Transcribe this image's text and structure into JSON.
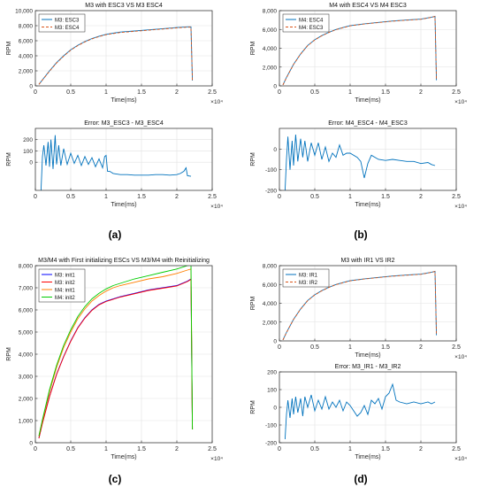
{
  "panel_labels": [
    "(a)",
    "(b)",
    "(c)",
    "(d)"
  ],
  "chart_data": [
    {
      "id": "a-top",
      "type": "line",
      "title": "M3 with ESC3 VS M3 ESC4",
      "xlabel": "Time(ms)",
      "ylabel": "RPM",
      "xlim": [
        0,
        25000
      ],
      "ylim": [
        0,
        10000
      ],
      "xticks": [
        0,
        5000,
        10000,
        15000,
        20000,
        25000
      ],
      "xtick_labels": [
        "0",
        "0.5",
        "1",
        "1.5",
        "2",
        "2.5"
      ],
      "x_exponent": "×10⁴",
      "yticks": [
        0,
        2000,
        4000,
        6000,
        8000,
        10000
      ],
      "ytick_labels": [
        "0",
        "2,000",
        "4,000",
        "6,000",
        "8,000",
        "10,000"
      ],
      "grid": true,
      "legend": "top-left",
      "series": [
        {
          "name": "M3: ESC3",
          "color": "#0072BD",
          "dash": "solid",
          "x": [
            500,
            1000,
            2000,
            3000,
            4000,
            5000,
            6000,
            7000,
            8000,
            9000,
            10000,
            11000,
            12000,
            14000,
            16000,
            18000,
            20000,
            21500,
            22000,
            22200
          ],
          "y": [
            200,
            800,
            2000,
            3100,
            4000,
            4800,
            5400,
            5900,
            6300,
            6600,
            6850,
            7000,
            7150,
            7300,
            7450,
            7600,
            7750,
            7850,
            7850,
            700
          ]
        },
        {
          "name": "M3: ESC4",
          "color": "#D95319",
          "dash": "dash",
          "x": [
            500,
            1000,
            2000,
            3000,
            4000,
            5000,
            6000,
            7000,
            8000,
            9000,
            10000,
            11000,
            12000,
            14000,
            16000,
            18000,
            20000,
            21500,
            22000,
            22200
          ],
          "y": [
            200,
            780,
            1950,
            3050,
            3950,
            4750,
            5350,
            5850,
            6250,
            6550,
            6800,
            6950,
            7100,
            7250,
            7400,
            7550,
            7700,
            7800,
            7800,
            700
          ]
        }
      ]
    },
    {
      "id": "a-bottom",
      "type": "line",
      "title": "Error: M3_ESC3 - M3_ESC4",
      "xlabel": "Time(ms)",
      "ylabel": "RPM",
      "xlim": [
        0,
        25000
      ],
      "ylim": [
        -250,
        300
      ],
      "xticks": [
        0,
        5000,
        10000,
        15000,
        20000,
        25000
      ],
      "xtick_labels": [
        "0",
        "0.5",
        "1",
        "1.5",
        "2",
        "2.5"
      ],
      "x_exponent": "×10⁴",
      "yticks": [
        0,
        100,
        200
      ],
      "ytick_labels": [
        "0",
        "100",
        "200"
      ],
      "grid": true,
      "legend": "none",
      "series": [
        {
          "name": "",
          "color": "#0072BD",
          "dash": "solid",
          "x": [
            800,
            1000,
            1200,
            1500,
            1800,
            2000,
            2200,
            2500,
            2800,
            3000,
            3300,
            3600,
            4000,
            4500,
            5000,
            5500,
            6000,
            6500,
            7000,
            7500,
            8000,
            8500,
            9000,
            9500,
            9800,
            10000,
            10200,
            10500,
            11000,
            12000,
            13000,
            14000,
            15000,
            16000,
            17000,
            18000,
            19000,
            20000,
            20500,
            21000,
            21300,
            21500,
            22000
          ],
          "y": [
            -250,
            50,
            150,
            -30,
            180,
            -40,
            200,
            -60,
            240,
            -20,
            150,
            -30,
            120,
            -20,
            80,
            -10,
            60,
            -30,
            50,
            -20,
            40,
            -40,
            30,
            -50,
            50,
            60,
            -80,
            -80,
            -100,
            -110,
            -110,
            -115,
            -115,
            -115,
            -110,
            -110,
            -115,
            -110,
            -100,
            -80,
            -50,
            -120,
            -125
          ]
        }
      ]
    },
    {
      "id": "b-top",
      "type": "line",
      "title": "M4 with ESC4 VS M4 ESC3",
      "xlabel": "Time(ms)",
      "ylabel": "RPM",
      "xlim": [
        0,
        25000
      ],
      "ylim": [
        0,
        8000
      ],
      "xticks": [
        0,
        5000,
        10000,
        15000,
        20000,
        25000
      ],
      "xtick_labels": [
        "0",
        "0.5",
        "1",
        "1.5",
        "2",
        "2.5"
      ],
      "x_exponent": "×10⁴",
      "yticks": [
        0,
        2000,
        4000,
        6000,
        8000
      ],
      "ytick_labels": [
        "0",
        "2,000",
        "4,000",
        "6,000",
        "8,000"
      ],
      "grid": true,
      "legend": "top-left",
      "series": [
        {
          "name": "M4: ESC4",
          "color": "#0072BD",
          "dash": "solid",
          "x": [
            500,
            1000,
            2000,
            3000,
            4000,
            5000,
            6000,
            7000,
            8000,
            9000,
            10000,
            11000,
            12000,
            14000,
            16000,
            18000,
            20000,
            21500,
            22000,
            22200
          ],
          "y": [
            100,
            900,
            2300,
            3400,
            4300,
            4900,
            5350,
            5700,
            6000,
            6200,
            6400,
            6500,
            6600,
            6750,
            6900,
            7000,
            7100,
            7300,
            7400,
            600
          ]
        },
        {
          "name": "M4: ESC3",
          "color": "#D95319",
          "dash": "dash",
          "x": [
            500,
            1000,
            2000,
            3000,
            4000,
            5000,
            6000,
            7000,
            8000,
            9000,
            10000,
            11000,
            12000,
            14000,
            16000,
            18000,
            20000,
            21500,
            22000,
            22200
          ],
          "y": [
            100,
            880,
            2280,
            3380,
            4280,
            4880,
            5330,
            5680,
            5980,
            6180,
            6380,
            6480,
            6580,
            6730,
            6880,
            6980,
            7080,
            7280,
            7380,
            600
          ]
        }
      ]
    },
    {
      "id": "b-bottom",
      "type": "line",
      "title": "Error: M4_ESC4 - M4_ESC3",
      "xlabel": "Time(ms)",
      "ylabel": "RPM",
      "xlim": [
        0,
        25000
      ],
      "ylim": [
        -200,
        100
      ],
      "xticks": [
        0,
        5000,
        10000,
        15000,
        20000,
        25000
      ],
      "xtick_labels": [
        "0",
        "0.5",
        "1",
        "1.5",
        "2",
        "2.5"
      ],
      "x_exponent": "×10⁴",
      "yticks": [
        -200,
        -100,
        0
      ],
      "ytick_labels": [
        "-200",
        "-100",
        "0"
      ],
      "grid": true,
      "legend": "none",
      "series": [
        {
          "name": "",
          "color": "#0072BD",
          "dash": "solid",
          "x": [
            800,
            1000,
            1200,
            1500,
            1800,
            2000,
            2300,
            2600,
            3000,
            3300,
            3600,
            4000,
            4500,
            5000,
            5500,
            6000,
            6500,
            7000,
            7500,
            8000,
            8500,
            9000,
            9500,
            10000,
            11000,
            11500,
            12000,
            12500,
            13000,
            14000,
            15000,
            16000,
            17000,
            18000,
            19000,
            20000,
            21000,
            21500,
            22000
          ],
          "y": [
            -200,
            -50,
            60,
            -100,
            40,
            -80,
            70,
            -60,
            50,
            -40,
            40,
            -60,
            30,
            -30,
            30,
            -50,
            10,
            -60,
            -20,
            -40,
            20,
            -30,
            -20,
            -20,
            -40,
            -60,
            -140,
            -70,
            -30,
            -50,
            -55,
            -50,
            -55,
            -60,
            -60,
            -70,
            -65,
            -75,
            -80
          ]
        }
      ]
    },
    {
      "id": "c",
      "type": "line",
      "title": "M3/M4 with First initializing ESCs VS M3/M4 with Reinitializing",
      "xlabel": "Time(ms)",
      "ylabel": "RPM",
      "xlim": [
        0,
        25000
      ],
      "ylim": [
        0,
        8000
      ],
      "xticks": [
        0,
        5000,
        10000,
        15000,
        20000,
        25000
      ],
      "xtick_labels": [
        "0",
        "0.5",
        "1",
        "1.5",
        "2",
        "2.5"
      ],
      "x_exponent": "×10⁴",
      "yticks": [
        0,
        1000,
        2000,
        3000,
        4000,
        5000,
        6000,
        7000,
        8000
      ],
      "ytick_labels": [
        "0",
        "1,000",
        "2,000",
        "3,000",
        "4,000",
        "5,000",
        "6,000",
        "7,000",
        "8,000"
      ],
      "grid": true,
      "legend": "top-left",
      "series": [
        {
          "name": "M3: init1",
          "color": "#0000FF",
          "dash": "solid",
          "x": [
            500,
            1000,
            2000,
            3000,
            4000,
            5000,
            6000,
            7000,
            8000,
            9000,
            10000,
            11000,
            12000,
            14000,
            16000,
            18000,
            20000,
            21500,
            22000,
            22200
          ],
          "y": [
            200,
            900,
            2100,
            3100,
            3900,
            4600,
            5200,
            5650,
            6000,
            6250,
            6400,
            6500,
            6600,
            6750,
            6900,
            7000,
            7100,
            7300,
            7400,
            600
          ]
        },
        {
          "name": "M3: init2",
          "color": "#FF0000",
          "dash": "solid",
          "x": [
            500,
            1000,
            2000,
            3000,
            4000,
            5000,
            6000,
            7000,
            8000,
            9000,
            10000,
            11000,
            12000,
            14000,
            16000,
            18000,
            20000,
            21500,
            22000,
            22200
          ],
          "y": [
            200,
            880,
            2080,
            3080,
            3880,
            4580,
            5180,
            5630,
            5980,
            6230,
            6380,
            6480,
            6580,
            6730,
            6880,
            6980,
            7080,
            7280,
            7380,
            600
          ]
        },
        {
          "name": "M4: init1",
          "color": "#FF7F00",
          "dash": "solid",
          "x": [
            500,
            1000,
            2000,
            3000,
            4000,
            5000,
            6000,
            7000,
            8000,
            9000,
            10000,
            11000,
            12000,
            14000,
            16000,
            18000,
            20000,
            21500,
            22000,
            22200
          ],
          "y": [
            300,
            1000,
            2300,
            3400,
            4300,
            5000,
            5600,
            6050,
            6400,
            6650,
            6850,
            7000,
            7100,
            7250,
            7400,
            7500,
            7650,
            7800,
            7850,
            600
          ]
        },
        {
          "name": "M4: init2",
          "color": "#00CC00",
          "dash": "solid",
          "x": [
            500,
            1000,
            2000,
            3000,
            4000,
            5000,
            6000,
            7000,
            8000,
            9000,
            10000,
            11000,
            12000,
            14000,
            16000,
            18000,
            20000,
            21500,
            22000,
            22200
          ],
          "y": [
            300,
            1050,
            2400,
            3500,
            4400,
            5100,
            5700,
            6150,
            6500,
            6750,
            6950,
            7100,
            7200,
            7400,
            7550,
            7700,
            7850,
            8000,
            8050,
            600
          ]
        }
      ]
    },
    {
      "id": "d-top",
      "type": "line",
      "title": "M3 with IR1 VS IR2",
      "xlabel": "Time(ms)",
      "ylabel": "RPM",
      "xlim": [
        0,
        25000
      ],
      "ylim": [
        0,
        8000
      ],
      "xticks": [
        0,
        5000,
        10000,
        15000,
        20000,
        25000
      ],
      "xtick_labels": [
        "0",
        "0.5",
        "1",
        "1.5",
        "2",
        "2.5"
      ],
      "x_exponent": "×10⁴",
      "yticks": [
        0,
        2000,
        4000,
        6000,
        8000
      ],
      "ytick_labels": [
        "0",
        "2,000",
        "4,000",
        "6,000",
        "8,000"
      ],
      "grid": true,
      "legend": "top-left",
      "series": [
        {
          "name": "M3: IR1",
          "color": "#0072BD",
          "dash": "solid",
          "x": [
            500,
            1000,
            2000,
            3000,
            4000,
            5000,
            6000,
            7000,
            8000,
            9000,
            10000,
            11000,
            12000,
            14000,
            16000,
            18000,
            20000,
            21500,
            22000,
            22200
          ],
          "y": [
            100,
            900,
            2300,
            3400,
            4300,
            4900,
            5350,
            5700,
            6000,
            6200,
            6400,
            6500,
            6600,
            6750,
            6900,
            7000,
            7100,
            7300,
            7400,
            600
          ]
        },
        {
          "name": "M3: IR2",
          "color": "#D95319",
          "dash": "dash",
          "x": [
            500,
            1000,
            2000,
            3000,
            4000,
            5000,
            6000,
            7000,
            8000,
            9000,
            10000,
            11000,
            12000,
            14000,
            16000,
            18000,
            20000,
            21500,
            22000,
            22200
          ],
          "y": [
            100,
            880,
            2280,
            3380,
            4280,
            4880,
            5330,
            5680,
            5980,
            6180,
            6380,
            6480,
            6580,
            6730,
            6880,
            6980,
            7080,
            7280,
            7380,
            600
          ]
        }
      ]
    },
    {
      "id": "d-bottom",
      "type": "line",
      "title": "Error: M3_IR1 - M3_IR2",
      "xlabel": "Time(ms)",
      "ylabel": "RPM",
      "xlim": [
        0,
        25000
      ],
      "ylim": [
        -200,
        200
      ],
      "xticks": [
        0,
        5000,
        10000,
        15000,
        20000,
        25000
      ],
      "xtick_labels": [
        "0",
        "0.5",
        "1",
        "1.5",
        "2",
        "2.5"
      ],
      "x_exponent": "×10⁴",
      "yticks": [
        -200,
        -100,
        0,
        100,
        200
      ],
      "ytick_labels": [
        "-200",
        "-100",
        "0",
        "100",
        "200"
      ],
      "grid": true,
      "legend": "none",
      "series": [
        {
          "name": "",
          "color": "#0072BD",
          "dash": "solid",
          "x": [
            800,
            1000,
            1200,
            1500,
            1800,
            2000,
            2300,
            2600,
            3000,
            3300,
            3600,
            4000,
            4500,
            5000,
            5500,
            6000,
            6500,
            7000,
            7500,
            8000,
            8500,
            9000,
            9500,
            10000,
            10500,
            11000,
            11500,
            12000,
            12500,
            13000,
            13500,
            14000,
            14500,
            15000,
            15500,
            16000,
            16500,
            17000,
            18000,
            19000,
            20000,
            21000,
            21500,
            22000
          ],
          "y": [
            -180,
            -40,
            40,
            -60,
            50,
            -40,
            60,
            -30,
            50,
            -50,
            60,
            0,
            70,
            -20,
            40,
            -10,
            60,
            -10,
            30,
            0,
            40,
            -20,
            30,
            10,
            -20,
            -50,
            -30,
            10,
            -40,
            40,
            20,
            50,
            -10,
            60,
            80,
            130,
            40,
            30,
            20,
            30,
            20,
            30,
            20,
            30
          ]
        }
      ]
    }
  ]
}
